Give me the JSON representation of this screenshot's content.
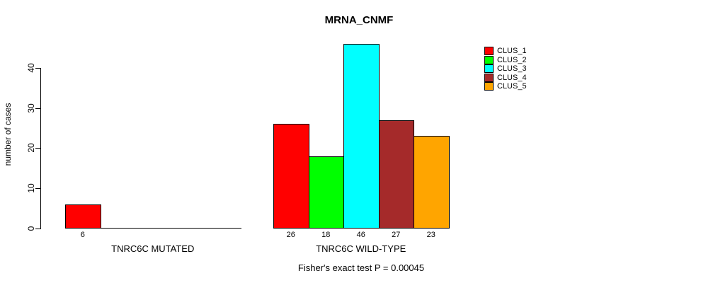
{
  "chart_data": {
    "type": "bar",
    "title": "MRNA_CNMF",
    "ylabel": "number of cases",
    "xlabel": "",
    "yticks": [
      0,
      10,
      20,
      30,
      40
    ],
    "ylim": [
      0,
      46
    ],
    "grid": false,
    "legend_position": "right",
    "series_colors": [
      "#ff0000",
      "#00ff00",
      "#00ffff",
      "#a52a2a",
      "#ffa500"
    ],
    "groups": [
      {
        "label": "TNRC6C MUTATED",
        "values": [
          6,
          0,
          0,
          0,
          0
        ],
        "value_labels": [
          "6",
          "",
          "",
          "",
          ""
        ]
      },
      {
        "label": "TNRC6C WILD-TYPE",
        "values": [
          26,
          18,
          46,
          27,
          23
        ],
        "value_labels": [
          "26",
          "18",
          "46",
          "27",
          "23"
        ]
      }
    ],
    "legend": [
      {
        "label": "CLUS_1",
        "color": "#ff0000"
      },
      {
        "label": "CLUS_2",
        "color": "#00ff00"
      },
      {
        "label": "CLUS_3",
        "color": "#00ffff"
      },
      {
        "label": "CLUS_4",
        "color": "#a52a2a"
      },
      {
        "label": "CLUS_5",
        "color": "#ffa500"
      }
    ],
    "caption": "Fisher's exact test P = 0.00045"
  }
}
